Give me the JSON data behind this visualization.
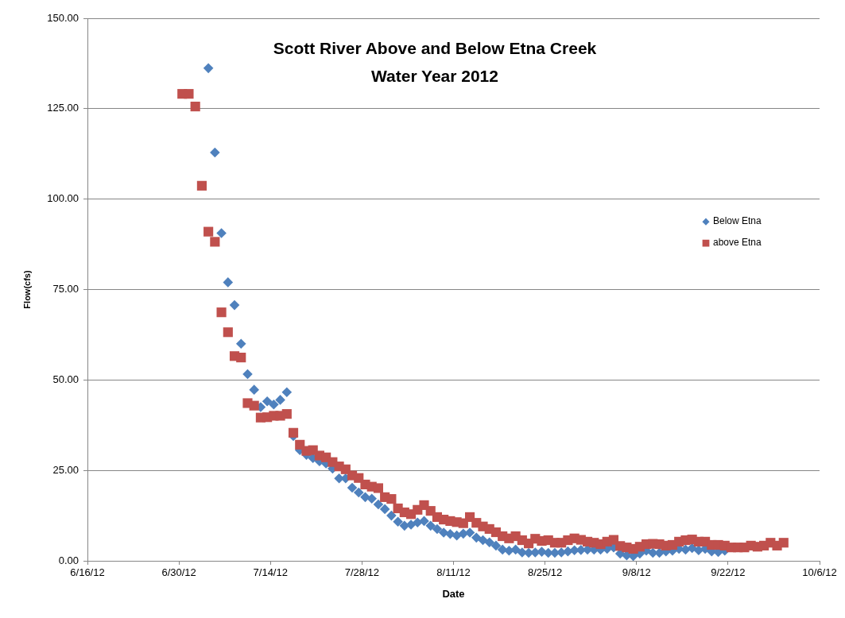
{
  "chart_data": {
    "type": "scatter",
    "title": "Scott River Above and Below Etna Creek",
    "subtitle": "Water Year 2012",
    "xlabel": "Date",
    "ylabel": "Flow(cfs)",
    "xlim": [
      "2012-06-16",
      "2012-10-06"
    ],
    "xticks": [
      {
        "value": "2012-06-16",
        "label": "6/16/12"
      },
      {
        "value": "2012-06-30",
        "label": "6/30/12"
      },
      {
        "value": "2012-07-14",
        "label": "7/14/12"
      },
      {
        "value": "2012-07-28",
        "label": "7/28/12"
      },
      {
        "value": "2012-08-11",
        "label": "8/11/12"
      },
      {
        "value": "2012-08-25",
        "label": "8/25/12"
      },
      {
        "value": "2012-09-08",
        "label": "9/8/12"
      },
      {
        "value": "2012-09-22",
        "label": "9/22/12"
      },
      {
        "value": "2012-10-06",
        "label": "10/6/12"
      }
    ],
    "ylim": [
      0,
      150
    ],
    "yticks": [
      {
        "value": 0,
        "label": "0.00"
      },
      {
        "value": 25,
        "label": "25.00"
      },
      {
        "value": 50,
        "label": "50.00"
      },
      {
        "value": 75,
        "label": "75.00"
      },
      {
        "value": 100,
        "label": "100.00"
      },
      {
        "value": 125,
        "label": "125.00"
      },
      {
        "value": 150,
        "label": "150.00"
      }
    ],
    "grid": "y",
    "legend": "right",
    "series": [
      {
        "name": "Below Etna",
        "color": "#4f81bd",
        "marker": "diamond",
        "x": [
          "2012-07-04T12:00",
          "2012-07-05T12:00",
          "2012-07-06T12:00",
          "2012-07-07T12:00",
          "2012-07-08T12:00",
          "2012-07-09T12:00",
          "2012-07-10T12:00",
          "2012-07-11T12:00",
          "2012-07-12T12:00",
          "2012-07-13T12:00",
          "2012-07-14T12:00",
          "2012-07-15T12:00",
          "2012-07-16T12:00",
          "2012-07-17T12:00",
          "2012-07-18T12:00",
          "2012-07-19T12:00",
          "2012-07-20T12:00",
          "2012-07-21T12:00",
          "2012-07-22T12:00",
          "2012-07-23T12:00",
          "2012-07-24T12:00",
          "2012-07-25T12:00",
          "2012-07-26T12:00",
          "2012-07-27T12:00",
          "2012-07-28T12:00",
          "2012-07-29T12:00",
          "2012-07-30T12:00",
          "2012-07-31T12:00",
          "2012-08-01T12:00",
          "2012-08-02T12:00",
          "2012-08-03T12:00",
          "2012-08-04T12:00",
          "2012-08-05T12:00",
          "2012-08-06T12:00",
          "2012-08-07T12:00",
          "2012-08-08T12:00",
          "2012-08-09T12:00",
          "2012-08-10T12:00",
          "2012-08-11T12:00",
          "2012-08-12T12:00",
          "2012-08-13T12:00",
          "2012-08-14T12:00",
          "2012-08-15T12:00",
          "2012-08-16T12:00",
          "2012-08-17T12:00",
          "2012-08-18T12:00",
          "2012-08-19T12:00",
          "2012-08-20T12:00",
          "2012-08-21T12:00",
          "2012-08-22T12:00",
          "2012-08-23T12:00",
          "2012-08-24T12:00",
          "2012-08-25T12:00",
          "2012-08-26T12:00",
          "2012-08-27T12:00",
          "2012-08-28T12:00",
          "2012-08-29T12:00",
          "2012-08-30T12:00",
          "2012-08-31T12:00",
          "2012-09-01T12:00",
          "2012-09-02T12:00",
          "2012-09-03T12:00",
          "2012-09-04T12:00",
          "2012-09-05T12:00",
          "2012-09-06T12:00",
          "2012-09-07T12:00",
          "2012-09-08T12:00",
          "2012-09-09T12:00",
          "2012-09-10T12:00",
          "2012-09-11T12:00",
          "2012-09-12T12:00",
          "2012-09-13T12:00",
          "2012-09-14T12:00",
          "2012-09-15T12:00",
          "2012-09-16T12:00",
          "2012-09-17T12:00",
          "2012-09-18T12:00",
          "2012-09-19T12:00",
          "2012-09-20T12:00",
          "2012-09-21T12:00"
        ],
        "values": [
          136.2,
          112.9,
          90.6,
          77.0,
          70.7,
          60.0,
          51.6,
          47.3,
          42.5,
          44.1,
          43.2,
          44.5,
          46.6,
          34.5,
          30.6,
          29.3,
          28.4,
          27.5,
          26.9,
          25.5,
          22.8,
          22.8,
          20.2,
          18.9,
          17.6,
          17.2,
          15.6,
          14.3,
          12.5,
          10.8,
          9.7,
          10.0,
          10.6,
          11.0,
          9.7,
          8.8,
          7.8,
          7.4,
          7.0,
          7.5,
          7.8,
          6.4,
          5.7,
          5.1,
          4.2,
          3.1,
          2.8,
          3.1,
          2.3,
          2.2,
          2.3,
          2.5,
          2.2,
          2.2,
          2.3,
          2.6,
          2.9,
          3.0,
          3.1,
          3.1,
          3.1,
          3.3,
          3.7,
          2.0,
          1.5,
          1.3,
          2.0,
          2.8,
          2.2,
          2.2,
          2.6,
          2.8,
          3.3,
          3.1,
          3.5,
          2.9,
          3.3,
          2.6,
          2.4,
          2.8
        ]
      },
      {
        "name": "above Etna",
        "color": "#c0504d",
        "marker": "square",
        "x": [
          "2012-06-30T12:00",
          "2012-07-01T12:00",
          "2012-07-02T12:00",
          "2012-07-03T12:00",
          "2012-07-04T12:00",
          "2012-07-05T12:00",
          "2012-07-06T12:00",
          "2012-07-07T12:00",
          "2012-07-08T12:00",
          "2012-07-09T12:00",
          "2012-07-10T12:00",
          "2012-07-11T12:00",
          "2012-07-12T12:00",
          "2012-07-13T12:00",
          "2012-07-14T12:00",
          "2012-07-15T12:00",
          "2012-07-16T12:00",
          "2012-07-17T12:00",
          "2012-07-18T12:00",
          "2012-07-19T12:00",
          "2012-07-20T12:00",
          "2012-07-21T12:00",
          "2012-07-22T12:00",
          "2012-07-23T12:00",
          "2012-07-24T12:00",
          "2012-07-25T12:00",
          "2012-07-26T12:00",
          "2012-07-27T12:00",
          "2012-07-28T12:00",
          "2012-07-29T12:00",
          "2012-07-30T12:00",
          "2012-07-31T12:00",
          "2012-08-01T12:00",
          "2012-08-02T12:00",
          "2012-08-03T12:00",
          "2012-08-04T12:00",
          "2012-08-05T12:00",
          "2012-08-06T12:00",
          "2012-08-07T12:00",
          "2012-08-08T12:00",
          "2012-08-09T12:00",
          "2012-08-10T12:00",
          "2012-08-11T12:00",
          "2012-08-12T12:00",
          "2012-08-13T12:00",
          "2012-08-14T12:00",
          "2012-08-15T12:00",
          "2012-08-16T12:00",
          "2012-08-17T12:00",
          "2012-08-18T12:00",
          "2012-08-19T12:00",
          "2012-08-20T12:00",
          "2012-08-21T12:00",
          "2012-08-22T12:00",
          "2012-08-23T12:00",
          "2012-08-24T12:00",
          "2012-08-25T12:00",
          "2012-08-26T12:00",
          "2012-08-27T12:00",
          "2012-08-28T12:00",
          "2012-08-29T12:00",
          "2012-08-30T12:00",
          "2012-08-31T12:00",
          "2012-09-01T12:00",
          "2012-09-02T12:00",
          "2012-09-03T12:00",
          "2012-09-04T12:00",
          "2012-09-05T12:00",
          "2012-09-06T12:00",
          "2012-09-07T12:00",
          "2012-09-08T12:00",
          "2012-09-09T12:00",
          "2012-09-10T12:00",
          "2012-09-11T12:00",
          "2012-09-12T12:00",
          "2012-09-13T12:00",
          "2012-09-14T12:00",
          "2012-09-15T12:00",
          "2012-09-16T12:00",
          "2012-09-17T12:00",
          "2012-09-18T12:00",
          "2012-09-19T12:00",
          "2012-09-20T12:00",
          "2012-09-21T12:00",
          "2012-09-22T12:00",
          "2012-09-23T12:00",
          "2012-09-24T12:00",
          "2012-09-25T12:00",
          "2012-09-26T12:00",
          "2012-09-27T12:00",
          "2012-09-28T12:00",
          "2012-09-29T12:00",
          "2012-09-30T12:00"
        ],
        "values": [
          129.1,
          129.1,
          125.6,
          103.7,
          91.0,
          88.2,
          68.7,
          63.2,
          56.6,
          56.2,
          43.6,
          42.9,
          39.6,
          39.7,
          40.1,
          40.1,
          40.6,
          35.4,
          32.1,
          30.4,
          30.6,
          29.1,
          28.6,
          27.3,
          26.1,
          25.3,
          23.6,
          22.9,
          21.1,
          20.5,
          20.1,
          17.6,
          17.1,
          14.5,
          13.4,
          12.9,
          14.1,
          15.4,
          13.8,
          12.1,
          11.4,
          11.0,
          10.7,
          10.4,
          12.1,
          10.5,
          9.5,
          8.8,
          7.9,
          6.8,
          6.2,
          6.8,
          5.7,
          4.8,
          6.1,
          5.5,
          5.7,
          5.0,
          5.0,
          5.7,
          6.2,
          5.8,
          5.3,
          5.0,
          4.6,
          5.3,
          5.8,
          4.1,
          3.7,
          3.3,
          3.9,
          4.6,
          4.7,
          4.6,
          4.2,
          4.4,
          5.3,
          5.7,
          5.9,
          5.3,
          5.3,
          4.4,
          4.4,
          4.2,
          3.7,
          3.7,
          3.7,
          4.2,
          3.9,
          4.2,
          5.0,
          4.2,
          5.0
        ]
      }
    ]
  }
}
